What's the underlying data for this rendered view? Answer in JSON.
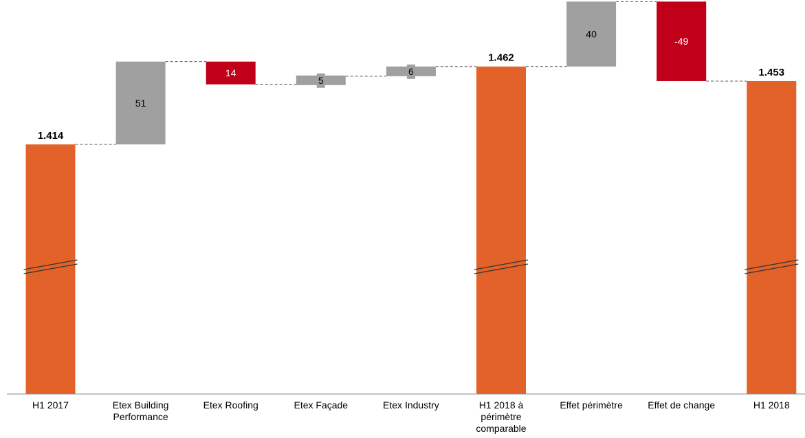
{
  "chart_data": {
    "type": "waterfall",
    "title": "",
    "xlabel": "",
    "ylabel": "",
    "y_axis_break": true,
    "ylim": [
      1300,
      1500
    ],
    "steps": [
      {
        "category": [
          "H1 2017"
        ],
        "kind": "total",
        "value": 1414,
        "label": "1.414"
      },
      {
        "category": [
          "Etex Building",
          "Performance"
        ],
        "kind": "delta",
        "value": 51,
        "label": "51"
      },
      {
        "category": [
          "Etex Roofing"
        ],
        "kind": "delta",
        "value": -14,
        "label": "14"
      },
      {
        "category": [
          "Etex Façade"
        ],
        "kind": "delta",
        "value": 5,
        "label": "5"
      },
      {
        "category": [
          "Etex Industry"
        ],
        "kind": "delta",
        "value": 6,
        "label": "6"
      },
      {
        "category": [
          "H1 2018 à",
          "périmètre",
          "comparable"
        ],
        "kind": "total",
        "value": 1462,
        "label": "1.462"
      },
      {
        "category": [
          "Effet périmètre"
        ],
        "kind": "delta",
        "value": 40,
        "label": "40"
      },
      {
        "category": [
          "Effet de change"
        ],
        "kind": "delta",
        "value": -49,
        "label": "-49"
      },
      {
        "category": [
          "H1 2018"
        ],
        "kind": "total",
        "value": 1453,
        "label": "1.453"
      }
    ],
    "colors": {
      "total": "#E3622A",
      "increase": "#A0A0A0",
      "decrease": "#C00018",
      "connector": "#555555",
      "break_mark": "#333333"
    }
  }
}
